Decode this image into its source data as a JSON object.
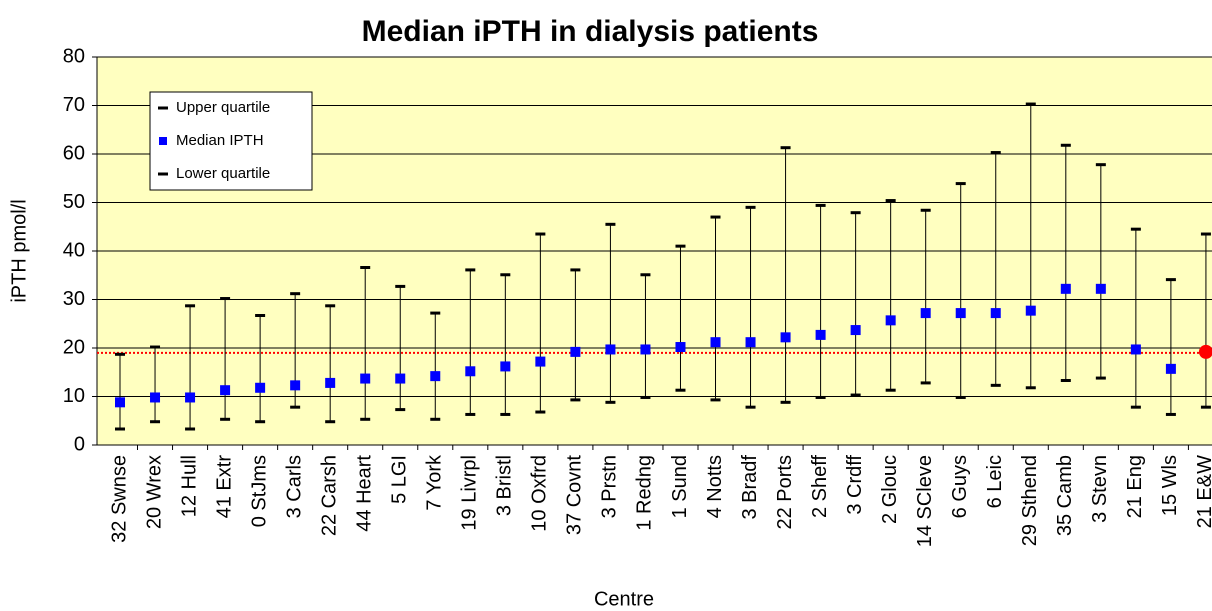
{
  "chart_data": {
    "type": "range-markers",
    "title": "Median iPTH in dialysis patients",
    "x_label": "Centre",
    "y_label": "iPTH pmol/l",
    "categories": [
      "32 Swnse",
      "20 Wrex",
      "12 Hull",
      "41 Extr",
      "0 StJms",
      "3 Carls",
      "22 Carsh",
      "44 Heart",
      "5 LGI",
      "7 York",
      "19 Livrpl",
      "3 Bristl",
      "10 Oxfrd",
      "37 Covnt",
      "3 Prstn",
      "1 Redng",
      "1 Sund",
      "4 Notts",
      "3 Bradf",
      "22 Ports",
      "2 Sheff",
      "3 Crdff",
      "2 Glouc",
      "14 SCleve",
      "6 Guys",
      "6 Leic",
      "29 Sthend",
      "35 Camb",
      "3 Stevn",
      "21 Eng",
      "15 Wls",
      "21 E&W"
    ],
    "series": [
      {
        "name": "Upper quartile",
        "color": "#000000",
        "marker": "dash",
        "values": [
          18.7,
          20.2,
          28.7,
          30.2,
          26.7,
          31.2,
          28.7,
          36.6,
          32.7,
          27.2,
          36.1,
          35.1,
          43.5,
          36.1,
          45.5,
          35.1,
          41.0,
          47.0,
          49.0,
          61.3,
          49.4,
          47.9,
          50.4,
          48.4,
          53.9,
          60.3,
          70.3,
          61.8,
          57.8,
          44.5,
          34.1,
          43.5
        ]
      },
      {
        "name": "Median IPTH",
        "color": "#0000ff",
        "marker": "square",
        "values": [
          8.8,
          9.8,
          9.8,
          11.3,
          11.8,
          12.3,
          12.8,
          13.7,
          13.7,
          14.2,
          15.2,
          16.2,
          17.2,
          19.2,
          19.7,
          19.7,
          20.2,
          21.2,
          21.2,
          22.2,
          22.7,
          23.7,
          25.7,
          27.2,
          27.2,
          27.2,
          27.7,
          32.2,
          32.2,
          19.7,
          15.7,
          19.2
        ]
      },
      {
        "name": "Lower quartile",
        "color": "#000000",
        "marker": "dash",
        "values": [
          3.3,
          4.8,
          3.3,
          5.3,
          4.8,
          7.8,
          4.8,
          5.3,
          7.3,
          5.3,
          6.3,
          6.3,
          6.8,
          9.3,
          8.8,
          9.8,
          11.3,
          9.3,
          7.8,
          8.8,
          9.8,
          10.3,
          11.3,
          12.8,
          9.8,
          12.3,
          11.8,
          13.3,
          13.8,
          7.8,
          6.3,
          7.8
        ]
      }
    ],
    "highlight_index": 31,
    "highlight_color": "#ff0000",
    "reference_line": 19,
    "reference_color": "#ff0000",
    "ylim": [
      0,
      80
    ],
    "yticks": [
      0,
      10,
      20,
      30,
      40,
      50,
      60,
      70,
      80
    ],
    "grid": true,
    "plot_background": "#ffffc0",
    "legend_position": "upper left"
  }
}
